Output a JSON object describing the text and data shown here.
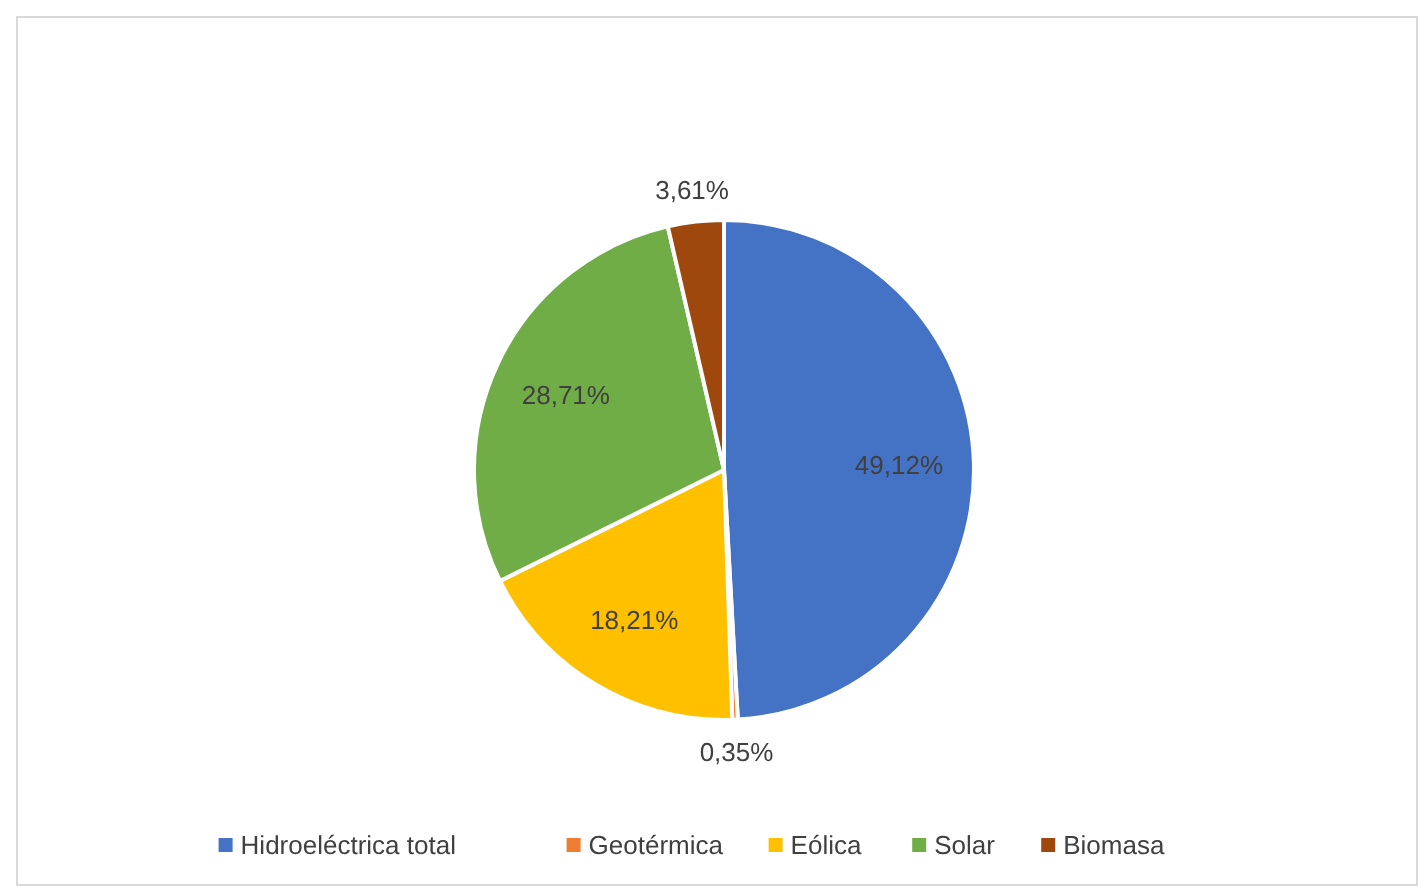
{
  "chart_data": {
    "type": "pie",
    "categories": [
      "Hidroeléctrica total",
      "Geotérmica",
      "Eólica",
      "Solar",
      "Biomasa"
    ],
    "values": [
      49.12,
      0.35,
      18.21,
      28.71,
      3.61
    ],
    "colors": [
      "#4472c4",
      "#ed7d31",
      "#ffc000",
      "#70ad47",
      "#9e480e"
    ],
    "value_labels": [
      "49,12%",
      "0,35%",
      "18,21%",
      "28,71%",
      "3,61%"
    ],
    "legend": "bottom"
  }
}
